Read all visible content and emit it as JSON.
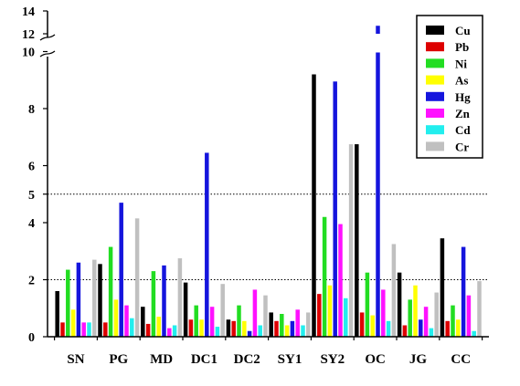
{
  "chart_data": {
    "type": "bar",
    "title": "",
    "xlabel": "",
    "ylabel": "",
    "categories": [
      "SN",
      "PG",
      "MD",
      "DC1",
      "DC2",
      "SY1",
      "SY2",
      "OC",
      "JG",
      "CC"
    ],
    "series": [
      {
        "name": "Cu",
        "color": "#000000",
        "values": [
          1.6,
          2.55,
          1.05,
          1.9,
          0.6,
          0.85,
          9.2,
          6.75,
          2.25,
          3.45
        ]
      },
      {
        "name": "Pb",
        "color": "#dd0000",
        "values": [
          0.5,
          0.5,
          0.45,
          0.6,
          0.55,
          0.55,
          1.5,
          0.85,
          0.4,
          0.55
        ]
      },
      {
        "name": "Ni",
        "color": "#22dd22",
        "values": [
          2.35,
          3.15,
          2.3,
          1.1,
          1.1,
          0.8,
          4.2,
          2.25,
          1.3,
          1.1
        ]
      },
      {
        "name": "As",
        "color": "#ffff00",
        "values": [
          0.95,
          1.3,
          0.7,
          0.6,
          0.55,
          0.4,
          1.8,
          0.75,
          1.8,
          0.6
        ]
      },
      {
        "name": "Hg",
        "color": "#1515dd",
        "values": [
          2.6,
          4.7,
          2.5,
          6.45,
          0.2,
          0.55,
          8.95,
          12.7,
          0.6,
          3.15
        ]
      },
      {
        "name": "Zn",
        "color": "#ff11ff",
        "values": [
          0.5,
          1.1,
          0.3,
          1.05,
          1.65,
          0.95,
          3.95,
          1.65,
          1.05,
          1.45
        ]
      },
      {
        "name": "Cd",
        "color": "#22eeee",
        "values": [
          0.5,
          0.65,
          0.4,
          0.35,
          0.4,
          0.4,
          1.35,
          0.55,
          0.3,
          0.2
        ]
      },
      {
        "name": "Cr",
        "color": "#c0c0c0",
        "values": [
          2.7,
          4.15,
          2.75,
          1.85,
          1.45,
          0.85,
          6.75,
          3.25,
          1.55,
          1.95
        ]
      }
    ],
    "yticks": [
      "0",
      "2",
      "4",
      "5",
      "6",
      "8",
      "10",
      "12",
      "14"
    ],
    "y_axis_break": [
      10,
      12
    ],
    "reference_lines": [
      2,
      5
    ],
    "legend_position": "top-right",
    "grid": false
  }
}
